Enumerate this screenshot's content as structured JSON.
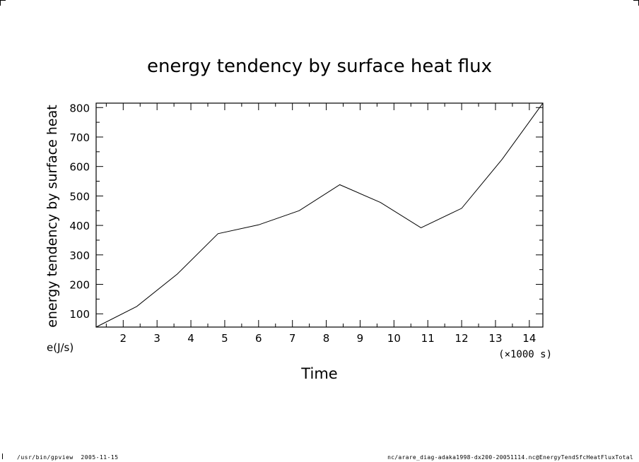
{
  "chart_data": {
    "type": "line",
    "title": "energy tendency by surface heat flux",
    "xlabel": "Time",
    "x_unit": "(×1000 s)",
    "ylabel": "energy tendency by surface heat",
    "y_unit": "e(J/s)",
    "xlim": [
      1.2,
      14.4
    ],
    "ylim": [
      55,
      815
    ],
    "x_ticks": [
      2,
      3,
      4,
      5,
      6,
      7,
      8,
      9,
      10,
      11,
      12,
      13,
      14
    ],
    "y_ticks": [
      100,
      200,
      300,
      400,
      500,
      600,
      700,
      800
    ],
    "grid": false,
    "series": [
      {
        "x": [
          1.2,
          2.4,
          3.6,
          4.8,
          6.0,
          7.2,
          8.4,
          9.6,
          10.8,
          12.0,
          13.2,
          14.4
        ],
        "y": [
          55,
          125,
          235,
          372,
          402,
          450,
          538,
          478,
          392,
          458,
          625,
          815
        ]
      }
    ],
    "line_color": "#000000"
  },
  "footer": {
    "left_text": "/usr/bin/gpview  2005-11-15",
    "right_text": "nc/arare_diag-adaka1998-dx200-20051114.nc@EnergyTendSfcHeatFluxTotal"
  }
}
